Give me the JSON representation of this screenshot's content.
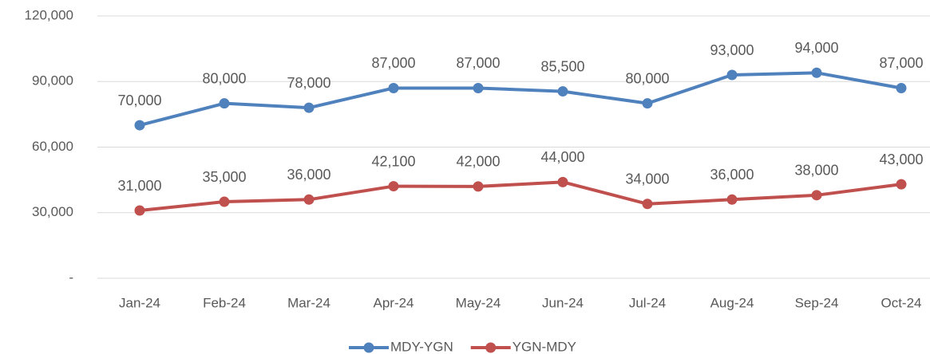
{
  "chart_data": {
    "type": "line",
    "categories": [
      "Jan-24",
      "Feb-24",
      "Mar-24",
      "Apr-24",
      "May-24",
      "Jun-24",
      "Jul-24",
      "Aug-24",
      "Sep-24",
      "Oct-24"
    ],
    "series": [
      {
        "name": "MDY-YGN",
        "color": "#4f81bd",
        "values": [
          70000,
          80000,
          78000,
          87000,
          87000,
          85500,
          80000,
          93000,
          94000,
          87000
        ],
        "value_labels": [
          "70,000",
          "80,000",
          "78,000",
          "87,000",
          "87,000",
          "85,500",
          "80,000",
          "93,000",
          "94,000",
          "87,000"
        ]
      },
      {
        "name": "YGN-MDY",
        "color": "#c0504d",
        "values": [
          31000,
          35000,
          36000,
          42100,
          42000,
          44000,
          34000,
          36000,
          38000,
          43000
        ],
        "value_labels": [
          "31,000",
          "35,000",
          "36,000",
          "42,100",
          "42,000",
          "44,000",
          "34,000",
          "36,000",
          "38,000",
          "43,000"
        ]
      }
    ],
    "ylim": [
      0,
      120000
    ],
    "yticks": [
      {
        "value": 0,
        "label": "-"
      },
      {
        "value": 30000,
        "label": "30,000"
      },
      {
        "value": 60000,
        "label": "60,000"
      },
      {
        "value": 90000,
        "label": "90,000"
      },
      {
        "value": 120000,
        "label": "120,000"
      }
    ],
    "grid": true,
    "legend": "bottom"
  }
}
